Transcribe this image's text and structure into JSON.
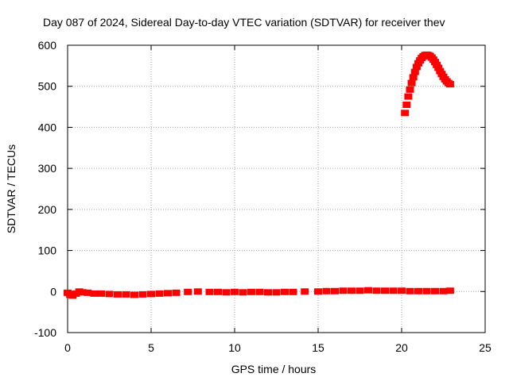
{
  "chart_data": {
    "type": "scatter",
    "title": "Day 087 of 2024, Sidereal Day-to-day VTEC variation (SDTVAR) for receiver thev",
    "xlabel": "GPS time / hours",
    "ylabel": "SDTVAR / TECUs",
    "xlim": [
      0,
      25
    ],
    "ylim": [
      -100,
      600
    ],
    "xticks": [
      0,
      5,
      10,
      15,
      20,
      25
    ],
    "yticks": [
      -100,
      0,
      100,
      200,
      300,
      400,
      500,
      600
    ],
    "grid": true,
    "legend": "none",
    "series": [
      {
        "name": "SDTVAR",
        "color": "#ff0000",
        "x": [
          0.0,
          0.15,
          0.3,
          0.5,
          0.7,
          0.9,
          1.2,
          1.6,
          2.0,
          2.5,
          3.0,
          3.5,
          4.0,
          4.5,
          5.0,
          5.5,
          6.0,
          6.5,
          7.2,
          7.8,
          8.5,
          9.0,
          9.5,
          10.0,
          10.5,
          11.0,
          11.5,
          12.0,
          12.5,
          13.0,
          13.5,
          14.2,
          15.0,
          15.5,
          16.0,
          16.5,
          17.0,
          17.5,
          18.0,
          18.5,
          19.0,
          19.5,
          20.0,
          20.5,
          21.0,
          21.5,
          22.0,
          22.5,
          22.9,
          20.2,
          20.3,
          20.4,
          20.5,
          20.6,
          20.7,
          20.8,
          20.9,
          21.0,
          21.1,
          21.2,
          21.3,
          21.4,
          21.5,
          21.6,
          21.7,
          21.8,
          21.9,
          22.0,
          22.1,
          22.2,
          22.3,
          22.4,
          22.5,
          22.6,
          22.7,
          22.8,
          22.9
        ],
        "y": [
          -3,
          -8,
          -10,
          -5,
          0,
          -2,
          -3,
          -5,
          -5,
          -6,
          -7,
          -7,
          -8,
          -7,
          -6,
          -5,
          -4,
          -3,
          -1,
          0,
          -1,
          -1,
          -2,
          -1,
          -2,
          -1,
          -1,
          -2,
          -2,
          -1,
          -1,
          0,
          0,
          1,
          1,
          2,
          2,
          2,
          3,
          2,
          2,
          2,
          2,
          1,
          1,
          1,
          1,
          1,
          2,
          435,
          455,
          475,
          492,
          508,
          522,
          535,
          547,
          556,
          563,
          569,
          573,
          576,
          577,
          576,
          574,
          570,
          565,
          559,
          552,
          545,
          537,
          530,
          523,
          517,
          512,
          508,
          505
        ]
      }
    ]
  }
}
